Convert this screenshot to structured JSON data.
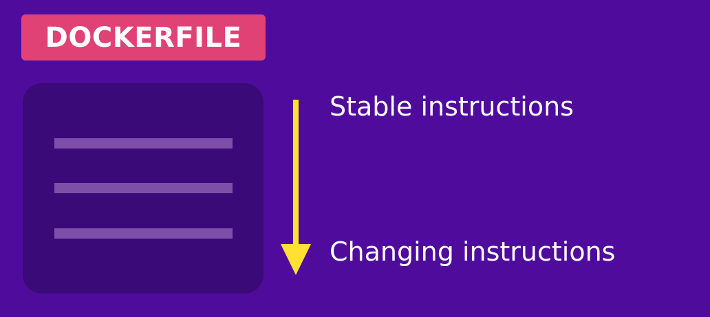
{
  "badge": {
    "text": "DOCKERFILE"
  },
  "labels": {
    "top": "Stable instructions",
    "bottom": "Changing instructions"
  },
  "colors": {
    "background": "#4f0c9c",
    "badge": "#e04275",
    "card": "#3a0a78",
    "lines": "#7d4fa8",
    "arrow": "#ffe033",
    "text": "#ffffff"
  },
  "file": {
    "line_count": 3
  }
}
